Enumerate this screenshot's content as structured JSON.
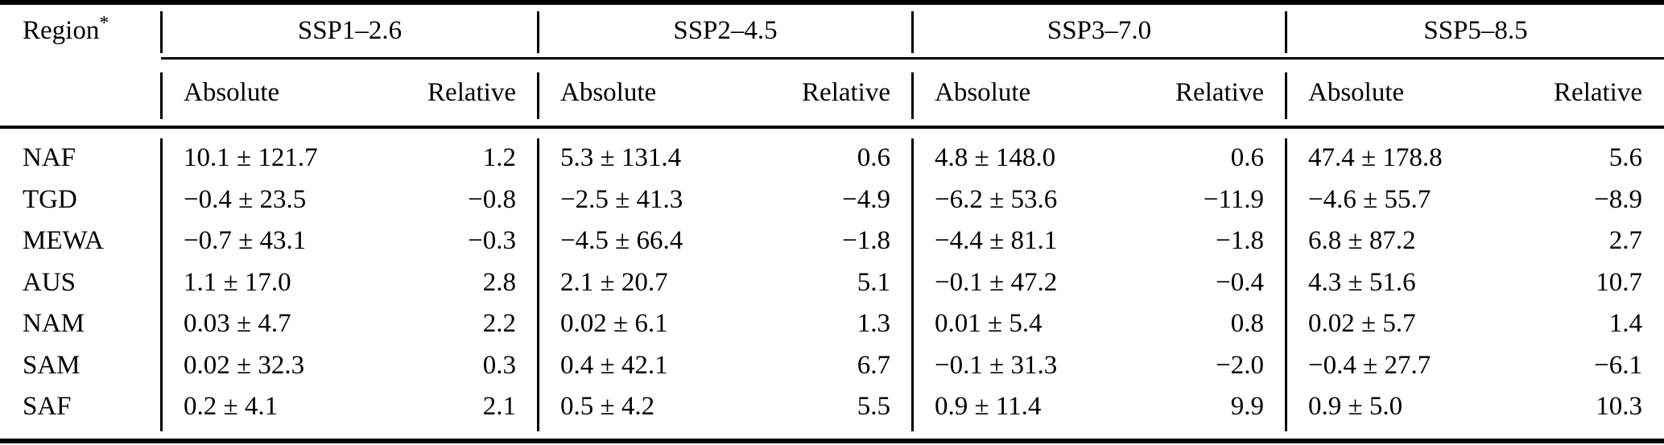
{
  "table": {
    "region_header": "Region",
    "region_footnote_marker": "*",
    "scenarios": [
      "SSP1–2.6",
      "SSP2–4.5",
      "SSP3–7.0",
      "SSP5–8.5"
    ],
    "subheaders": {
      "absolute": "Absolute",
      "relative": "Relative"
    },
    "rows": [
      {
        "region": "NAF",
        "values": [
          {
            "absolute": "10.1 ± 121.7",
            "relative": "1.2"
          },
          {
            "absolute": "5.3 ± 131.4",
            "relative": "0.6"
          },
          {
            "absolute": "4.8 ± 148.0",
            "relative": "0.6"
          },
          {
            "absolute": "47.4 ± 178.8",
            "relative": "5.6"
          }
        ]
      },
      {
        "region": "TGD",
        "values": [
          {
            "absolute": "−0.4 ± 23.5",
            "relative": "−0.8"
          },
          {
            "absolute": "−2.5 ± 41.3",
            "relative": "−4.9"
          },
          {
            "absolute": "−6.2 ± 53.6",
            "relative": "−11.9"
          },
          {
            "absolute": "−4.6 ± 55.7",
            "relative": "−8.9"
          }
        ]
      },
      {
        "region": "MEWA",
        "values": [
          {
            "absolute": "−0.7 ± 43.1",
            "relative": "−0.3"
          },
          {
            "absolute": "−4.5 ± 66.4",
            "relative": "−1.8"
          },
          {
            "absolute": "−4.4 ± 81.1",
            "relative": "−1.8"
          },
          {
            "absolute": "6.8 ± 87.2",
            "relative": "2.7"
          }
        ]
      },
      {
        "region": "AUS",
        "values": [
          {
            "absolute": "1.1 ± 17.0",
            "relative": "2.8"
          },
          {
            "absolute": "2.1 ± 20.7",
            "relative": "5.1"
          },
          {
            "absolute": "−0.1 ± 47.2",
            "relative": "−0.4"
          },
          {
            "absolute": "4.3 ± 51.6",
            "relative": "10.7"
          }
        ]
      },
      {
        "region": "NAM",
        "values": [
          {
            "absolute": "0.03 ± 4.7",
            "relative": "2.2"
          },
          {
            "absolute": "0.02 ± 6.1",
            "relative": "1.3"
          },
          {
            "absolute": "0.01 ± 5.4",
            "relative": "0.8"
          },
          {
            "absolute": "0.02 ± 5.7",
            "relative": "1.4"
          }
        ]
      },
      {
        "region": "SAM",
        "values": [
          {
            "absolute": "0.02 ± 32.3",
            "relative": "0.3"
          },
          {
            "absolute": "0.4 ± 42.1",
            "relative": "6.7"
          },
          {
            "absolute": "−0.1 ± 31.3",
            "relative": "−2.0"
          },
          {
            "absolute": "−0.4 ± 27.7",
            "relative": "−6.1"
          }
        ]
      },
      {
        "region": "SAF",
        "values": [
          {
            "absolute": "0.2 ± 4.1",
            "relative": "2.1"
          },
          {
            "absolute": "0.5 ± 4.2",
            "relative": "5.5"
          },
          {
            "absolute": "0.9 ± 11.4",
            "relative": "9.9"
          },
          {
            "absolute": "0.9 ± 5.0",
            "relative": "10.3"
          }
        ]
      }
    ]
  }
}
